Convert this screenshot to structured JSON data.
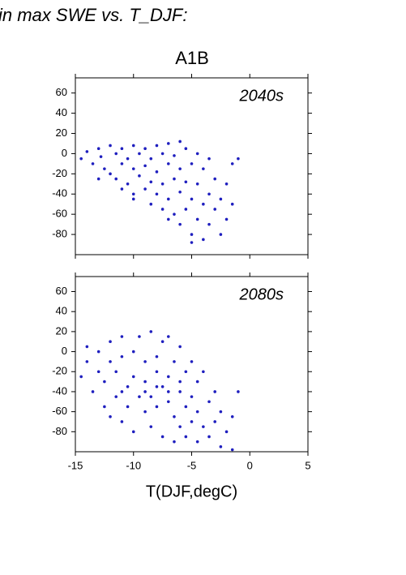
{
  "title": "in max SWE vs. T_DJF:",
  "subtitle": "A1B",
  "chart_data": [
    {
      "type": "scatter",
      "annotation": "2040s",
      "color": "#1f1fbf",
      "xlim": [
        -15,
        5
      ],
      "ylim": [
        -100,
        75
      ],
      "yticks": [
        -80,
        -60,
        -40,
        -20,
        0,
        20,
        40,
        60
      ],
      "x": [
        -14.5,
        -14,
        -13.5,
        -13,
        -12.8,
        -12.5,
        -12,
        -12,
        -11.5,
        -11.5,
        -11,
        -11,
        -11,
        -10.5,
        -10.5,
        -10,
        -10,
        -10,
        -9.5,
        -9.5,
        -9,
        -9,
        -9,
        -8.5,
        -8.5,
        -8.5,
        -8,
        -8,
        -8,
        -7.5,
        -7.5,
        -7.5,
        -7,
        -7,
        -7,
        -6.5,
        -6.5,
        -6.5,
        -6,
        -6,
        -6,
        -6,
        -5.5,
        -5.5,
        -5.5,
        -5,
        -5,
        -5,
        -4.5,
        -4.5,
        -4.5,
        -4,
        -4,
        -4,
        -3.5,
        -3.5,
        -3.5,
        -3,
        -3,
        -2.5,
        -2.5,
        -2,
        -2,
        -1.5,
        -1.5,
        -1,
        -13,
        -10,
        -7,
        -5
      ],
      "y": [
        -5,
        2,
        -10,
        5,
        -3,
        -15,
        8,
        -20,
        0,
        -25,
        5,
        -10,
        -35,
        -5,
        -30,
        8,
        -15,
        -40,
        0,
        -22,
        5,
        -12,
        -35,
        -5,
        -28,
        -50,
        8,
        -18,
        -40,
        0,
        -30,
        -55,
        10,
        -10,
        -45,
        -2,
        -25,
        -60,
        12,
        -15,
        -38,
        -70,
        5,
        -28,
        -55,
        -10,
        -45,
        -80,
        0,
        -30,
        -65,
        -15,
        -50,
        -85,
        -5,
        -40,
        -70,
        -25,
        -55,
        -45,
        -80,
        -30,
        -65,
        -10,
        -50,
        -5,
        -25,
        -45,
        -65,
        -88
      ]
    },
    {
      "type": "scatter",
      "annotation": "2080s",
      "color": "#1f1fbf",
      "xlabel": "T(DJF,degC)",
      "xlim": [
        -15,
        5
      ],
      "ylim": [
        -100,
        75
      ],
      "xticks": [
        -15,
        -10,
        -5,
        0,
        5
      ],
      "yticks": [
        -80,
        -60,
        -40,
        -20,
        0,
        20,
        40,
        60
      ],
      "x": [
        -14.5,
        -14,
        -14,
        -13.5,
        -13,
        -13,
        -12.5,
        -12.5,
        -12,
        -12,
        -12,
        -11.5,
        -11.5,
        -11,
        -11,
        -11,
        -10.5,
        -10.5,
        -10,
        -10,
        -10,
        -9.5,
        -9.5,
        -9,
        -9,
        -9,
        -8.5,
        -8.5,
        -8.5,
        -8,
        -8,
        -8,
        -7.5,
        -7.5,
        -7.5,
        -7,
        -7,
        -7,
        -6.5,
        -6.5,
        -6.5,
        -6,
        -6,
        -6,
        -5.5,
        -5.5,
        -5.5,
        -5,
        -5,
        -5,
        -4.5,
        -4.5,
        -4.5,
        -4,
        -4,
        -3.5,
        -3.5,
        -3,
        -3,
        -2.5,
        -2.5,
        -2,
        -1.5,
        -1,
        -1.5,
        -9,
        -8,
        -7,
        -6,
        -11
      ],
      "y": [
        -25,
        -10,
        5,
        -40,
        -20,
        0,
        -55,
        -30,
        10,
        -10,
        -65,
        -45,
        -20,
        15,
        -5,
        -70,
        -35,
        -55,
        0,
        -25,
        -80,
        -45,
        15,
        -10,
        -60,
        -30,
        20,
        -75,
        -45,
        -5,
        -20,
        -55,
        10,
        -35,
        -85,
        15,
        -50,
        -25,
        -10,
        -65,
        -90,
        5,
        -40,
        -75,
        -20,
        -55,
        -85,
        -10,
        -45,
        -70,
        -30,
        -60,
        -90,
        -20,
        -75,
        -50,
        -85,
        -40,
        -70,
        -60,
        -95,
        -80,
        -65,
        -40,
        -98,
        -40,
        -35,
        -40,
        -30,
        -40
      ]
    }
  ]
}
